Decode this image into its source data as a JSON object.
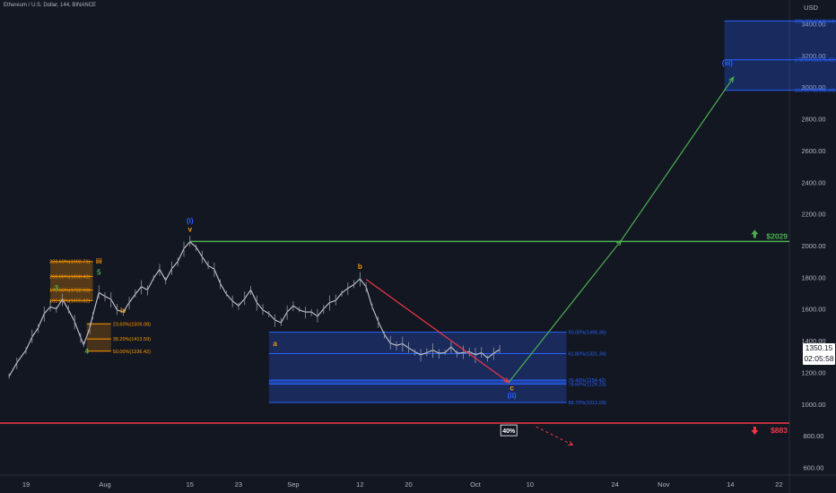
{
  "header": {
    "symbol_title": "Ethereum / U.S. Dollar, 144, BINANCE"
  },
  "price_box": {
    "price": "1350.15",
    "countdown": "02:05:58"
  },
  "chart_data": {
    "type": "line",
    "y_axis": {
      "label": "USD",
      "range": [
        600,
        3500
      ],
      "ticks": [
        "3400.00",
        "3200.00",
        "3000.00",
        "2800.00",
        "2600.00",
        "2400.00",
        "2200.00",
        "2000.00",
        "1800.00",
        "1600.00",
        "1400.00",
        "1200.00",
        "1000.00",
        "800.00",
        "600.00"
      ]
    },
    "x_axis": {
      "ticks": [
        {
          "label": "19",
          "day": 0
        },
        {
          "label": "Aug",
          "day": 13
        },
        {
          "label": "15",
          "day": 27
        },
        {
          "label": "23",
          "day": 35
        },
        {
          "label": "Sep",
          "day": 44
        },
        {
          "label": "12",
          "day": 55
        },
        {
          "label": "20",
          "day": 63
        },
        {
          "label": "Oct",
          "day": 74
        },
        {
          "label": "10",
          "day": 83
        },
        {
          "label": "24",
          "day": 97
        },
        {
          "label": "Nov",
          "day": 105
        },
        {
          "label": "14",
          "day": 116
        },
        {
          "label": "22",
          "day": 124
        }
      ]
    },
    "series": [
      {
        "values": [
          [
            -2.8,
            1180
          ],
          [
            -1.5,
            1260
          ],
          [
            0,
            1340
          ],
          [
            1,
            1430
          ],
          [
            2,
            1480
          ],
          [
            3,
            1570
          ],
          [
            4,
            1620
          ],
          [
            5,
            1600
          ],
          [
            6,
            1660
          ],
          [
            7,
            1600
          ],
          [
            8,
            1520
          ],
          [
            9,
            1420
          ],
          [
            9.5,
            1380
          ],
          [
            10.5,
            1480
          ],
          [
            11,
            1560
          ],
          [
            12,
            1710
          ],
          [
            13,
            1680
          ],
          [
            14,
            1660
          ],
          [
            15,
            1600
          ],
          [
            16,
            1580
          ],
          [
            17,
            1640
          ],
          [
            18,
            1700
          ],
          [
            19,
            1740
          ],
          [
            20,
            1720
          ],
          [
            21,
            1800
          ],
          [
            22,
            1850
          ],
          [
            23,
            1780
          ],
          [
            24,
            1860
          ],
          [
            25,
            1900
          ],
          [
            26,
            1980
          ],
          [
            27,
            2030
          ],
          [
            28,
            1990
          ],
          [
            29,
            1930
          ],
          [
            30,
            1880
          ],
          [
            31,
            1850
          ],
          [
            32,
            1760
          ],
          [
            33,
            1700
          ],
          [
            34,
            1650
          ],
          [
            35,
            1620
          ],
          [
            36,
            1670
          ],
          [
            37,
            1720
          ],
          [
            38,
            1640
          ],
          [
            39,
            1600
          ],
          [
            40,
            1570
          ],
          [
            41,
            1530
          ],
          [
            42,
            1520
          ],
          [
            43,
            1580
          ],
          [
            44,
            1620
          ],
          [
            45,
            1600
          ],
          [
            46,
            1580
          ],
          [
            47,
            1580
          ],
          [
            48,
            1560
          ],
          [
            49,
            1600
          ],
          [
            50,
            1640
          ],
          [
            51,
            1660
          ],
          [
            52,
            1700
          ],
          [
            53,
            1730
          ],
          [
            54,
            1760
          ],
          [
            55,
            1790
          ],
          [
            56,
            1740
          ],
          [
            57,
            1620
          ],
          [
            58,
            1520
          ],
          [
            59,
            1440
          ],
          [
            60,
            1390
          ],
          [
            61,
            1370
          ],
          [
            62,
            1380
          ],
          [
            63,
            1360
          ],
          [
            64,
            1330
          ],
          [
            65,
            1310
          ],
          [
            66,
            1330
          ],
          [
            67,
            1340
          ],
          [
            68,
            1320
          ],
          [
            69,
            1330
          ],
          [
            70,
            1360
          ],
          [
            71,
            1320
          ],
          [
            72,
            1330
          ],
          [
            73,
            1330
          ],
          [
            74,
            1310
          ],
          [
            75,
            1330
          ],
          [
            76,
            1290
          ],
          [
            77,
            1320
          ],
          [
            78,
            1350
          ]
        ]
      }
    ],
    "price_lines": [
      {
        "label": "$2029",
        "value": 2029,
        "color": "#4caf50"
      },
      {
        "label": "$883",
        "value": 883,
        "color": "#f23645"
      }
    ],
    "wave_labels": [
      {
        "text": "(i)",
        "day": 27,
        "price": 2145,
        "color": "#2962ff"
      },
      {
        "text": "v",
        "day": 27,
        "price": 2090,
        "color": "#ff9800"
      },
      {
        "text": "iii",
        "day": 12,
        "price": 1890,
        "color": "#ff9800"
      },
      {
        "text": "5",
        "day": 12,
        "price": 1820,
        "color": "#4caf50"
      },
      {
        "text": "3",
        "day": 5,
        "price": 1720,
        "color": "#4caf50"
      },
      {
        "text": "iv",
        "day": 16,
        "price": 1580,
        "color": "#ff9800"
      },
      {
        "text": "4",
        "day": 10,
        "price": 1320,
        "color": "#4caf50"
      },
      {
        "text": "a",
        "day": 41,
        "price": 1370,
        "color": "#ff9800"
      },
      {
        "text": "b",
        "day": 55,
        "price": 1855,
        "color": "#ff9800"
      },
      {
        "text": "c",
        "day": 80,
        "price": 1090,
        "color": "#ff9800"
      },
      {
        "text": "(ii)",
        "day": 80,
        "price": 1040,
        "color": "#2962ff"
      },
      {
        "text": "(iii)",
        "day": 115.5,
        "price": 3140,
        "color": "#2962ff"
      }
    ],
    "fib_upper": {
      "day_start": 115,
      "day_end": 134,
      "levels": [
        {
          "label": "200.00%(3420.64)",
          "value": 3420.64
        },
        {
          "label": "178.60%(3175.42)",
          "value": 3175.42
        },
        {
          "label": "161.80%(2982.90)",
          "value": 2982.9
        }
      ]
    },
    "fib_lower": {
      "day_start": 40,
      "day_end": 89,
      "levels": [
        {
          "label": "50.00%(1456.36)",
          "value": 1456.36
        },
        {
          "label": "61.80%(1321.34)",
          "value": 1321.34
        },
        {
          "label": "76.40%(1154.42)",
          "value": 1154.42
        },
        {
          "label": "78.60%(1129.23)",
          "value": 1129.23
        },
        {
          "label": "88.70%(1013.09)",
          "value": 1013.09
        }
      ]
    },
    "fib_ext_small": {
      "day_start": 4,
      "day_end": 11,
      "levels": [
        {
          "label": "223.60%(1902.71)",
          "value": 1902.71
        },
        {
          "label": "200.00%(1808.43)",
          "value": 1808.43
        },
        {
          "label": "178.60%(1722.93)",
          "value": 1722.93
        },
        {
          "label": "161.80%(1655.82)",
          "value": 1655.82
        }
      ]
    },
    "fib_retr_small": {
      "day_start": 10,
      "day_end": 14,
      "levels": [
        {
          "label": "23.60%(1509.08)",
          "value": 1509.08
        },
        {
          "label": "38.20%(1413.59)",
          "value": 1413.59
        },
        {
          "label": "50.00%(1336.42)",
          "value": 1336.42
        }
      ]
    },
    "projections": [
      {
        "from": [
          56,
          1790
        ],
        "to": [
          79.5,
          1140
        ],
        "color": "#f23645"
      },
      {
        "from": [
          79.5,
          1140
        ],
        "to": [
          98,
          2035
        ],
        "color": "#4caf50"
      },
      {
        "from": [
          98,
          2035
        ],
        "to": [
          116.5,
          3065
        ],
        "color": "#4caf50"
      }
    ],
    "dashed_arrow": {
      "from": [
        84,
        860
      ],
      "to": [
        90,
        745
      ],
      "color": "#f23645"
    },
    "percent_badge": {
      "text": "40%",
      "day": 79.5,
      "price": 837
    },
    "arrows": [
      {
        "direction": "up",
        "day": 120,
        "price": 2029,
        "color": "#4caf50"
      },
      {
        "direction": "down",
        "day": 120,
        "price": 883,
        "color": "#f23645"
      }
    ]
  }
}
